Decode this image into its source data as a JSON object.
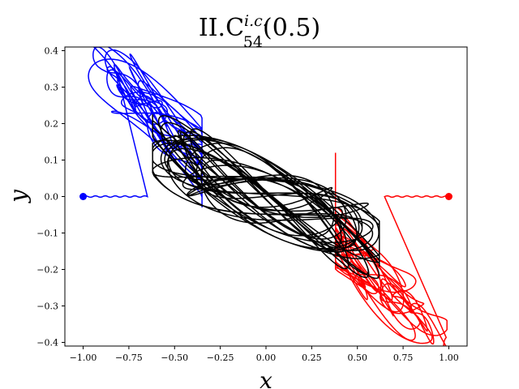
{
  "chart_data": {
    "type": "line",
    "title": {
      "main": "II.C",
      "superscript": "i.c.",
      "subscript": "54",
      "suffix": "(0.5)"
    },
    "xlabel": "x",
    "ylabel": "y",
    "xlim": [
      -1.1,
      1.1
    ],
    "ylim": [
      -0.41,
      0.41
    ],
    "xticks": [
      -1.0,
      -0.75,
      -0.5,
      -0.25,
      0.0,
      0.25,
      0.5,
      0.75,
      1.0
    ],
    "xtick_labels": [
      "−1.00",
      "−0.75",
      "−0.50",
      "−0.25",
      "0.00",
      "0.25",
      "0.50",
      "0.75",
      "1.00"
    ],
    "yticks": [
      -0.4,
      -0.3,
      -0.2,
      -0.1,
      0.0,
      0.1,
      0.2,
      0.3,
      0.4
    ],
    "ytick_labels": [
      "−0.4",
      "−0.3",
      "−0.2",
      "−0.1",
      "0.0",
      "0.1",
      "0.2",
      "0.3",
      "0.4"
    ],
    "grid": false,
    "series": [
      {
        "color": "#0000ff",
        "start_point": [
          -1.0,
          0.0
        ],
        "side": "left"
      },
      {
        "color": "#ff0000",
        "start_point": [
          1.0,
          0.0
        ],
        "side": "right"
      },
      {
        "color": "#000000",
        "side": "center"
      }
    ]
  }
}
